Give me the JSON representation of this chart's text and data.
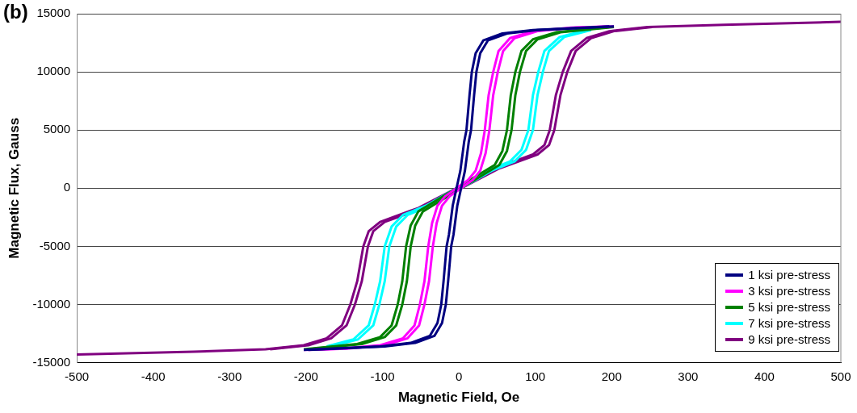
{
  "chart_data": {
    "type": "line",
    "title": "(b)",
    "xlabel": "Magnetic Field, Oe",
    "ylabel": "Magnetic Flux, Gauss",
    "xlim": [
      -500,
      500
    ],
    "ylim": [
      -15000,
      15000
    ],
    "xticks": [
      -500,
      -400,
      -300,
      -200,
      -100,
      0,
      100,
      200,
      300,
      400,
      500
    ],
    "yticks": [
      -15000,
      -10000,
      -5000,
      0,
      5000,
      10000,
      15000
    ],
    "grid": "y",
    "legend": "bottom right",
    "marker": "none",
    "line_style": "solid",
    "series": [
      {
        "name": "1 ksi pre-stress",
        "color": "#000080",
        "x": [
          -197,
          -97,
          -57,
          -32,
          -22,
          -17,
          -14,
          -10,
          -7,
          -2,
          3,
          8,
          13,
          16,
          20,
          23,
          28,
          38,
          63,
          103,
          203
        ],
        "values": [
          -13900,
          -13600,
          -13300,
          -12700,
          -11600,
          -10000,
          -8000,
          -5000,
          -4000,
          -1500,
          0,
          1500,
          4000,
          5000,
          8000,
          10000,
          11600,
          12700,
          13300,
          13600,
          13900
        ]
      },
      {
        "color": "#000080",
        "x": [
          -203,
          -103,
          -63,
          -38,
          -28,
          -23,
          -20,
          -16,
          -13,
          -8,
          -3,
          2,
          7,
          10,
          14,
          17,
          22,
          32,
          57,
          97,
          197
        ],
        "values": [
          -13900,
          -13600,
          -13300,
          -12700,
          -11600,
          -10000,
          -8000,
          -5000,
          -4000,
          -1500,
          0,
          1500,
          4000,
          5000,
          8000,
          10000,
          11600,
          12700,
          13300,
          13600,
          13900
        ]
      },
      {
        "name": "3 ksi pre-stress",
        "color": "#ff00ff",
        "x": [
          -197,
          -147,
          -97,
          -67,
          -52,
          -45,
          -39,
          -34,
          -29,
          -22,
          -12,
          3,
          18,
          28,
          35,
          40,
          45,
          51,
          58,
          73,
          103,
          153,
          203
        ],
        "values": [
          -13900,
          -13800,
          -13500,
          -12900,
          -11800,
          -10000,
          -8000,
          -5000,
          -3000,
          -1500,
          -700,
          0,
          700,
          1500,
          3000,
          5000,
          8000,
          10000,
          11800,
          12900,
          13500,
          13800,
          13900
        ]
      },
      {
        "color": "#ff00ff",
        "x": [
          -203,
          -153,
          -103,
          -73,
          -58,
          -51,
          -45,
          -40,
          -35,
          -28,
          -18,
          -3,
          12,
          22,
          29,
          34,
          39,
          45,
          52,
          67,
          97,
          147,
          197
        ],
        "values": [
          -13900,
          -13800,
          -13500,
          -12900,
          -11800,
          -10000,
          -8000,
          -5000,
          -3000,
          -1500,
          -700,
          0,
          700,
          1500,
          3000,
          5000,
          8000,
          10000,
          11800,
          12900,
          13500,
          13800,
          13900
        ]
      },
      {
        "name": "5 ksi pre-stress",
        "color": "#008000",
        "x": [
          -197,
          -127,
          -97,
          -82,
          -74,
          -68,
          -63,
          -57,
          -47,
          -27,
          3,
          33,
          53,
          63,
          69,
          74,
          80,
          88,
          103,
          133,
          203
        ],
        "values": [
          -13850,
          -13400,
          -12800,
          -11800,
          -10000,
          -8000,
          -5000,
          -3200,
          -2000,
          -1200,
          0,
          1200,
          2000,
          3200,
          5000,
          8000,
          10000,
          11800,
          12800,
          13400,
          13850
        ]
      },
      {
        "color": "#008000",
        "x": [
          -203,
          -133,
          -103,
          -88,
          -80,
          -74,
          -69,
          -63,
          -53,
          -33,
          -3,
          27,
          47,
          57,
          63,
          68,
          74,
          82,
          97,
          127,
          197
        ],
        "values": [
          -13850,
          -13400,
          -12800,
          -11800,
          -10000,
          -8000,
          -5000,
          -3200,
          -2000,
          -1200,
          0,
          1200,
          2000,
          3200,
          5000,
          8000,
          10000,
          11800,
          12800,
          13400,
          13850
        ]
      },
      {
        "name": "7 ksi pre-stress",
        "color": "#00ffff",
        "x": [
          -167,
          -132,
          -112,
          -104,
          -97,
          -91,
          -82,
          -67,
          -37,
          3,
          43,
          73,
          88,
          97,
          103,
          110,
          118,
          138,
          173
        ],
        "values": [
          -13600,
          -13000,
          -11800,
          -10000,
          -8000,
          -5000,
          -3300,
          -2300,
          -1500,
          0,
          1500,
          2300,
          3300,
          5000,
          8000,
          10000,
          11800,
          13000,
          13600
        ]
      },
      {
        "color": "#00ffff",
        "x": [
          -173,
          -138,
          -118,
          -110,
          -103,
          -97,
          -88,
          -73,
          -43,
          -3,
          37,
          67,
          82,
          91,
          97,
          104,
          112,
          132,
          167
        ],
        "values": [
          -13600,
          -13000,
          -11800,
          -10000,
          -8000,
          -5000,
          -3300,
          -2300,
          -1500,
          0,
          1500,
          2300,
          3300,
          5000,
          8000,
          10000,
          11800,
          13000,
          13600
        ]
      },
      {
        "name": "9 ksi pre-stress",
        "color": "#800080",
        "x": [
          -247,
          -197,
          -167,
          -147,
          -136,
          -127,
          -119,
          -112,
          -97,
          -47,
          3,
          53,
          103,
          118,
          125,
          133,
          142,
          153,
          173,
          203,
          253
        ],
        "values": [
          -13850,
          -13500,
          -12900,
          -11800,
          -10000,
          -8000,
          -5000,
          -3700,
          -2900,
          -1700,
          0,
          1700,
          2900,
          3700,
          5000,
          8000,
          10000,
          11800,
          12900,
          13500,
          13850
        ]
      },
      {
        "color": "#800080",
        "x": [
          -500,
          -347,
          -253,
          -203,
          -173,
          -153,
          -142,
          -133,
          -125,
          -118,
          -103,
          -53,
          -3,
          47,
          97,
          112,
          119,
          127,
          136,
          147,
          167,
          197,
          247,
          347,
          500
        ],
        "values": [
          -14300,
          -14050,
          -13850,
          -13500,
          -12900,
          -11800,
          -10000,
          -8000,
          -5000,
          -3700,
          -2900,
          -1700,
          0,
          1700,
          2900,
          3700,
          5000,
          8000,
          10000,
          11800,
          12900,
          13500,
          13850,
          14050,
          14300
        ]
      }
    ]
  }
}
